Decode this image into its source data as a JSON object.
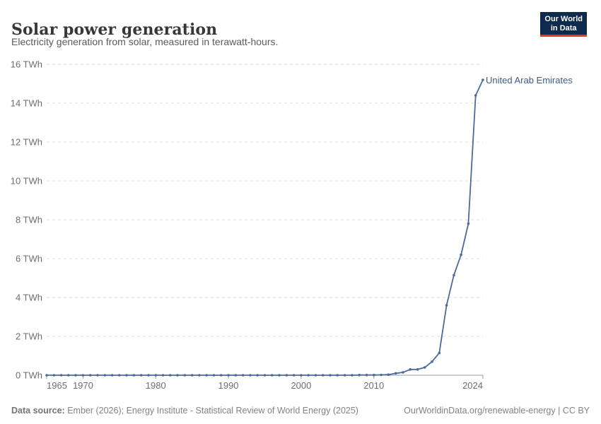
{
  "header": {
    "title": "Solar power generation",
    "subtitle": "Electricity generation from solar, measured in terawatt-hours."
  },
  "logo": {
    "line1": "Our World",
    "line2": "in Data",
    "bg_color": "#0e2a4d",
    "accent_color": "#e23a2e"
  },
  "footer": {
    "source_label": "Data source:",
    "source_text": " Ember (2026); Energy Institute - Statistical Review of World Energy (2025)",
    "right_text": "OurWorldinData.org/renewable-energy | CC BY"
  },
  "chart_data": {
    "type": "line",
    "title": "Solar power generation",
    "unit": "TWh",
    "grid": "horizontal dashed",
    "legend_position": "end-of-line label",
    "xlim": [
      1965,
      2025
    ],
    "ylim": [
      0,
      16
    ],
    "x": [
      1965,
      1966,
      1967,
      1968,
      1969,
      1970,
      1971,
      1972,
      1973,
      1974,
      1975,
      1976,
      1977,
      1978,
      1979,
      1980,
      1981,
      1982,
      1983,
      1984,
      1985,
      1986,
      1987,
      1988,
      1989,
      1990,
      1991,
      1992,
      1993,
      1994,
      1995,
      1996,
      1997,
      1998,
      1999,
      2000,
      2001,
      2002,
      2003,
      2004,
      2005,
      2006,
      2007,
      2008,
      2009,
      2010,
      2011,
      2012,
      2013,
      2014,
      2015,
      2016,
      2017,
      2018,
      2019,
      2020,
      2021,
      2022,
      2023,
      2024,
      2025
    ],
    "series": [
      {
        "name": "United Arab Emirates",
        "color": "#4c6a9c",
        "values": [
          0,
          0,
          0,
          0,
          0,
          0,
          0,
          0,
          0,
          0,
          0,
          0,
          0,
          0,
          0,
          0,
          0,
          0,
          0,
          0,
          0,
          0,
          0,
          0,
          0,
          0,
          0,
          0,
          0,
          0,
          0,
          0,
          0,
          0,
          0,
          0,
          0,
          0,
          0,
          0,
          0,
          0,
          0,
          0.01,
          0.01,
          0.01,
          0.02,
          0.03,
          0.1,
          0.15,
          0.3,
          0.3,
          0.4,
          0.7,
          1.15,
          3.6,
          5.15,
          6.2,
          7.8,
          14.4,
          15.2
        ]
      }
    ],
    "yticks": [
      {
        "value": 0,
        "label": "0 TWh"
      },
      {
        "value": 2,
        "label": "2 TWh"
      },
      {
        "value": 4,
        "label": "4 TWh"
      },
      {
        "value": 6,
        "label": "6 TWh"
      },
      {
        "value": 8,
        "label": "8 TWh"
      },
      {
        "value": 10,
        "label": "10 TWh"
      },
      {
        "value": 12,
        "label": "12 TWh"
      },
      {
        "value": 14,
        "label": "14 TWh"
      },
      {
        "value": 16,
        "label": "16 TWh"
      }
    ],
    "xticks": [
      {
        "value": 1965,
        "label": "1965"
      },
      {
        "value": 1970,
        "label": "1970"
      },
      {
        "value": 1980,
        "label": "1980"
      },
      {
        "value": 1990,
        "label": "1990"
      },
      {
        "value": 2000,
        "label": "2000"
      },
      {
        "value": 2010,
        "label": "2010"
      },
      {
        "value": 2024,
        "label": "2024"
      }
    ],
    "colors": {
      "gridline": "#dcdcdc",
      "axis": "#9a9a9a",
      "tick_label": "#6e6e6e"
    }
  }
}
